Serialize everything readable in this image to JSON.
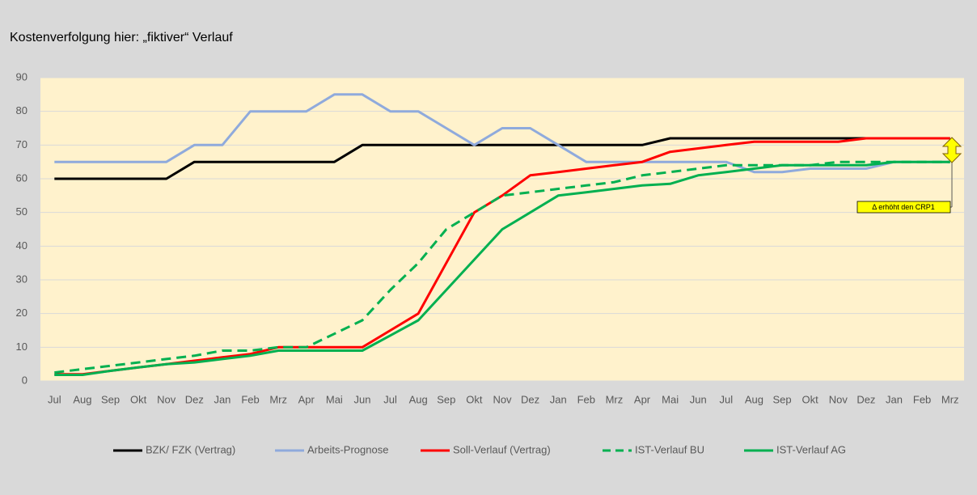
{
  "chart_data": {
    "type": "line",
    "title": "Kostenverfolgung hier: „fiktiver“ Verlauf",
    "categories": [
      "Jul",
      "Aug",
      "Sep",
      "Okt",
      "Nov",
      "Dez",
      "Jan",
      "Feb",
      "Mrz",
      "Apr",
      "Mai",
      "Jun",
      "Jul",
      "Aug",
      "Sep",
      "Okt",
      "Nov",
      "Dez",
      "Jan",
      "Feb",
      "Mrz",
      "Apr",
      "Mai",
      "Jun",
      "Jul",
      "Aug",
      "Sep",
      "Okt",
      "Nov",
      "Dez",
      "Jan",
      "Feb",
      "Mrz"
    ],
    "series": [
      {
        "name": "BZK/ FZK (Vertrag)",
        "color": "#000000",
        "dash": false,
        "values": [
          60,
          60,
          60,
          60,
          60,
          65,
          65,
          65,
          65,
          65,
          65,
          70,
          70,
          70,
          70,
          70,
          70,
          70,
          70,
          70,
          70,
          70,
          72,
          72,
          72,
          72,
          72,
          72,
          72,
          72,
          72,
          72,
          72
        ]
      },
      {
        "name": "Arbeits-Prognose",
        "color": "#8faadc",
        "dash": false,
        "values": [
          65,
          65,
          65,
          65,
          65,
          70,
          70,
          80,
          80,
          80,
          85,
          85,
          80,
          80,
          75,
          70,
          75,
          75,
          70,
          65,
          65,
          65,
          65,
          65,
          65,
          62,
          62,
          63,
          63,
          63,
          65,
          65,
          65
        ]
      },
      {
        "name": "Soll-Verlauf (Vertrag)",
        "color": "#ff0000",
        "dash": false,
        "values": [
          2,
          2,
          3,
          4,
          5,
          6,
          7,
          8,
          10,
          10,
          10,
          10,
          15,
          20,
          35,
          50,
          55,
          61,
          62,
          63,
          64,
          65,
          68,
          69,
          70,
          71,
          71,
          71,
          71,
          72,
          72,
          72,
          72
        ]
      },
      {
        "name": "IST-Verlauf BU",
        "color": "#00b050",
        "dash": true,
        "values": [
          2.5,
          3.5,
          4.5,
          5.5,
          6.5,
          7.5,
          9,
          9,
          10,
          10,
          14,
          18,
          27,
          35,
          45,
          50,
          55,
          56,
          57,
          58,
          59,
          61,
          62,
          63,
          64,
          64,
          64,
          64,
          65,
          65,
          65,
          65,
          65
        ]
      },
      {
        "name": "IST-Verlauf AG",
        "color": "#00b050",
        "dash": false,
        "values": [
          1.8,
          1.8,
          3,
          4,
          5,
          5.5,
          6.5,
          7.5,
          9,
          9,
          9,
          9,
          13.5,
          18,
          27,
          36,
          45,
          50,
          55,
          56,
          57,
          58,
          58.5,
          61,
          62,
          63,
          64,
          64,
          64,
          64,
          65,
          65,
          65
        ]
      }
    ],
    "ylim": [
      0,
      90
    ],
    "yticks": [
      0,
      10,
      20,
      30,
      40,
      50,
      60,
      70,
      80,
      90
    ],
    "grid": true,
    "annotation": "Δ erhöht den CRP1"
  }
}
